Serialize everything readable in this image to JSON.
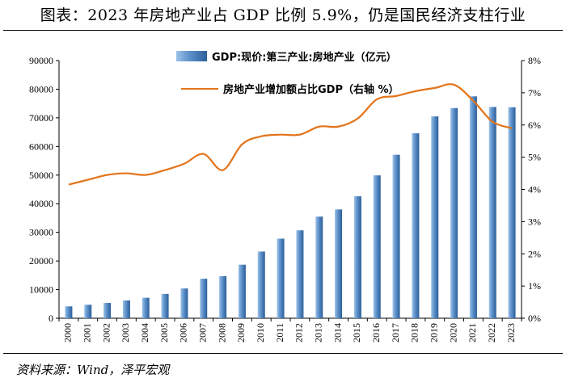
{
  "header": {
    "title": "图表：2023 年房地产业占 GDP 比例 5.9%，仍是国民经济支柱行业"
  },
  "footer": {
    "source": "资料来源：Wind，泽平宏观"
  },
  "colors": {
    "bar": "#5b8fc8",
    "line": "#e3741a",
    "axis": "#000000"
  },
  "chart_data": {
    "type": "bar+line",
    "categories": [
      "2000",
      "2001",
      "2002",
      "2003",
      "2004",
      "2005",
      "2006",
      "2007",
      "2008",
      "2009",
      "2010",
      "2011",
      "2012",
      "2013",
      "2014",
      "2015",
      "2016",
      "2017",
      "2018",
      "2019",
      "2020",
      "2021",
      "2022",
      "2023"
    ],
    "series": [
      {
        "name": "GDP:现价:第三产业:房地产业（亿元）",
        "type": "bar",
        "axis": "left",
        "values": [
          4150,
          4700,
          5350,
          6200,
          7150,
          8500,
          10400,
          13800,
          14700,
          18700,
          23300,
          27800,
          30700,
          35500,
          38000,
          42600,
          49900,
          57100,
          64600,
          70500,
          73400,
          77500,
          73800,
          73700
        ]
      },
      {
        "name": "房地产业增加额占比GDP（右轴 %）",
        "type": "line",
        "axis": "right",
        "values": [
          4.15,
          4.3,
          4.45,
          4.5,
          4.45,
          4.6,
          4.8,
          5.1,
          4.6,
          5.4,
          5.65,
          5.7,
          5.7,
          5.95,
          5.95,
          6.2,
          6.8,
          6.9,
          7.05,
          7.15,
          7.25,
          6.75,
          6.1,
          5.9
        ]
      }
    ],
    "ylim_left": [
      0,
      90000
    ],
    "yticks_left": [
      "0",
      "10000",
      "20000",
      "30000",
      "40000",
      "50000",
      "60000",
      "70000",
      "80000",
      "90000"
    ],
    "ylim_right": [
      0,
      8
    ],
    "yticks_right": [
      "0%",
      "1%",
      "2%",
      "3%",
      "4%",
      "5%",
      "6%",
      "7%",
      "8%"
    ],
    "legend_position": "top-center"
  }
}
